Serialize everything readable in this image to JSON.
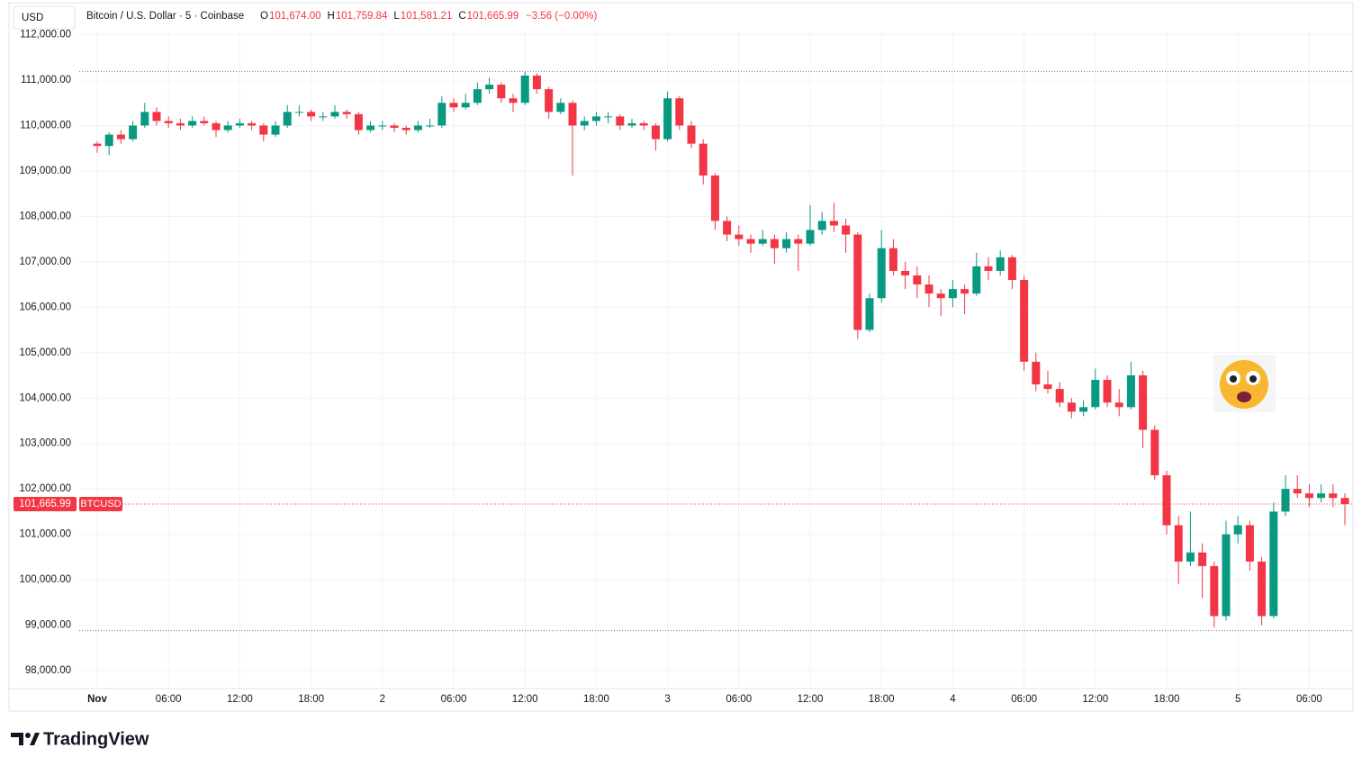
{
  "chart_data": {
    "type": "candlestick",
    "header": {
      "currency": "USD",
      "symbol_desc": "Bitcoin / U.S. Dollar · 5 · Coinbase",
      "ohlc": [
        {
          "label": "O",
          "value": "101,674.00"
        },
        {
          "label": "H",
          "value": "101,759.84"
        },
        {
          "label": "L",
          "value": "101,581.21"
        },
        {
          "label": "C",
          "value": "101,665.99"
        }
      ],
      "change": "−3.56 (−0.00%)"
    },
    "brand": "TradingView",
    "up_color": "#089981",
    "down_color": "#f23645",
    "grid": true,
    "ylim": [
      97603,
      112665
    ],
    "yticks": [
      {
        "value": 98000,
        "label": "98,000.00"
      },
      {
        "value": 99000,
        "label": "99,000.00"
      },
      {
        "value": 100000,
        "label": "100,000.00"
      },
      {
        "value": 101000,
        "label": "101,000.00"
      },
      {
        "value": 102000,
        "label": "102,000.00"
      },
      {
        "value": 103000,
        "label": "103,000.00"
      },
      {
        "value": 104000,
        "label": "104,000.00"
      },
      {
        "value": 105000,
        "label": "105,000.00"
      },
      {
        "value": 106000,
        "label": "106,000.00"
      },
      {
        "value": 107000,
        "label": "107,000.00"
      },
      {
        "value": 108000,
        "label": "108,000.00"
      },
      {
        "value": 109000,
        "label": "109,000.00"
      },
      {
        "value": 110000,
        "label": "110,000.00"
      },
      {
        "value": 111000,
        "label": "111,000.00"
      },
      {
        "value": 112000,
        "label": "112,000.00"
      }
    ],
    "xticks": [
      {
        "value": 0,
        "label": "Nov"
      },
      {
        "value": 6,
        "label": "06:00"
      },
      {
        "value": 12,
        "label": "12:00"
      },
      {
        "value": 18,
        "label": "18:00"
      },
      {
        "value": 24,
        "label": "2"
      },
      {
        "value": 30,
        "label": "06:00"
      },
      {
        "value": 36,
        "label": "12:00"
      },
      {
        "value": 42,
        "label": "18:00"
      },
      {
        "value": 48,
        "label": "3"
      },
      {
        "value": 54,
        "label": "06:00"
      },
      {
        "value": 60,
        "label": "12:00"
      },
      {
        "value": 66,
        "label": "18:00"
      },
      {
        "value": 72,
        "label": "4"
      },
      {
        "value": 78,
        "label": "06:00"
      },
      {
        "value": 84,
        "label": "12:00"
      },
      {
        "value": 90,
        "label": "18:00"
      },
      {
        "value": 96,
        "label": "5"
      },
      {
        "value": 102,
        "label": "06:00"
      }
    ],
    "last_price": {
      "value": 101665.99,
      "label": "101,665.99"
    },
    "range_high": 111190,
    "range_low": 98880,
    "series": [
      {
        "name": "BTCUSD",
        "open": [
          109600,
          109550,
          109800,
          109700,
          110000,
          110300,
          110100,
          110050,
          110000,
          110100,
          110050,
          109900,
          110000,
          110050,
          110000,
          109800,
          110000,
          110300,
          110300,
          110200,
          110200,
          110300,
          110250,
          109900,
          110000,
          110000,
          109950,
          109900,
          110000,
          110000,
          110500,
          110400,
          110500,
          110800,
          110900,
          110600,
          110500,
          111100,
          110800,
          110300,
          110500,
          110000,
          110100,
          110200,
          110200,
          110000,
          110050,
          110000,
          109700,
          110600,
          110000,
          109600,
          108900,
          107900,
          107600,
          107500,
          107400,
          107500,
          107300,
          107500,
          107400,
          107700,
          107900,
          107800,
          107600,
          105500,
          106200,
          107300,
          106800,
          106700,
          106500,
          106300,
          106200,
          106400,
          106300,
          106900,
          106800,
          107100,
          106600,
          104800,
          104300,
          104200,
          103900,
          103700,
          103800,
          104400,
          103900,
          103800,
          104500,
          103300,
          102300,
          101200,
          100400,
          100600,
          100300,
          99200,
          101000,
          101200,
          100400,
          99200,
          101500,
          102000,
          101900,
          101800,
          101900,
          101800
        ],
        "high": [
          109650,
          109850,
          109900,
          110100,
          110500,
          110400,
          110200,
          110150,
          110200,
          110200,
          110100,
          110100,
          110150,
          110100,
          110050,
          110100,
          110450,
          110450,
          110350,
          110300,
          110450,
          110350,
          110300,
          110100,
          110100,
          110050,
          110000,
          110100,
          110150,
          110650,
          110600,
          110700,
          110950,
          111050,
          110950,
          110700,
          111180,
          111150,
          110850,
          110600,
          110550,
          110200,
          110300,
          110300,
          110250,
          110150,
          110100,
          110050,
          110750,
          110650,
          110100,
          109700,
          108950,
          108000,
          107800,
          107600,
          107700,
          107600,
          107650,
          107600,
          108250,
          108100,
          108300,
          107950,
          107650,
          106300,
          107700,
          107500,
          107000,
          106900,
          106700,
          106400,
          106600,
          106500,
          107200,
          107100,
          107250,
          107150,
          106700,
          105000,
          104600,
          104350,
          104000,
          103950,
          104650,
          104500,
          104200,
          104800,
          104600,
          103400,
          102400,
          101400,
          101500,
          100800,
          100400,
          101300,
          101400,
          101300,
          100500,
          101700,
          102300,
          102300,
          102100,
          102100,
          102100,
          101900
        ],
        "low": [
          109400,
          109350,
          109600,
          109650,
          109950,
          110000,
          109950,
          109900,
          109950,
          110000,
          109750,
          109850,
          109950,
          109900,
          109650,
          109750,
          109950,
          110200,
          110100,
          110100,
          110150,
          110150,
          109800,
          109850,
          109900,
          109850,
          109800,
          109850,
          109950,
          109950,
          110300,
          110350,
          110450,
          110700,
          110500,
          110300,
          110450,
          110700,
          110150,
          110250,
          108900,
          109900,
          110000,
          110050,
          109900,
          109950,
          109900,
          109450,
          109650,
          109900,
          109500,
          108700,
          107700,
          107450,
          107350,
          107200,
          107350,
          106950,
          107200,
          106800,
          107350,
          107600,
          107650,
          107200,
          105300,
          105450,
          106100,
          106700,
          106400,
          106200,
          106000,
          105800,
          106000,
          105850,
          106250,
          106600,
          106700,
          106400,
          104600,
          104150,
          104100,
          103800,
          103550,
          103600,
          103750,
          103800,
          103600,
          103750,
          102900,
          102200,
          101000,
          99900,
          100300,
          99600,
          98950,
          99100,
          100800,
          100200,
          99000,
          99150,
          101400,
          101800,
          101600,
          101700,
          101600,
          101200
        ],
        "close": [
          109550,
          109800,
          109700,
          110000,
          110300,
          110100,
          110050,
          110000,
          110100,
          110050,
          109900,
          110000,
          110050,
          110000,
          109800,
          110000,
          110300,
          110300,
          110200,
          110200,
          110300,
          110250,
          109900,
          110000,
          110000,
          109950,
          109900,
          110000,
          110000,
          110500,
          110400,
          110500,
          110800,
          110900,
          110600,
          110500,
          111100,
          110800,
          110300,
          110500,
          110000,
          110100,
          110200,
          110200,
          110000,
          110050,
          110000,
          109700,
          110600,
          110000,
          109600,
          108900,
          107900,
          107600,
          107500,
          107400,
          107500,
          107300,
          107500,
          107400,
          107700,
          107900,
          107800,
          107600,
          105500,
          106200,
          107300,
          106800,
          106700,
          106500,
          106300,
          106200,
          106400,
          106300,
          106900,
          106800,
          107100,
          106600,
          104800,
          104300,
          104200,
          103900,
          103700,
          103800,
          104400,
          103900,
          103800,
          104500,
          103300,
          102300,
          101200,
          100400,
          100600,
          100300,
          99200,
          101000,
          101200,
          100400,
          99200,
          101500,
          102000,
          101900,
          101800,
          101900,
          101800,
          101665.99
        ]
      }
    ]
  }
}
